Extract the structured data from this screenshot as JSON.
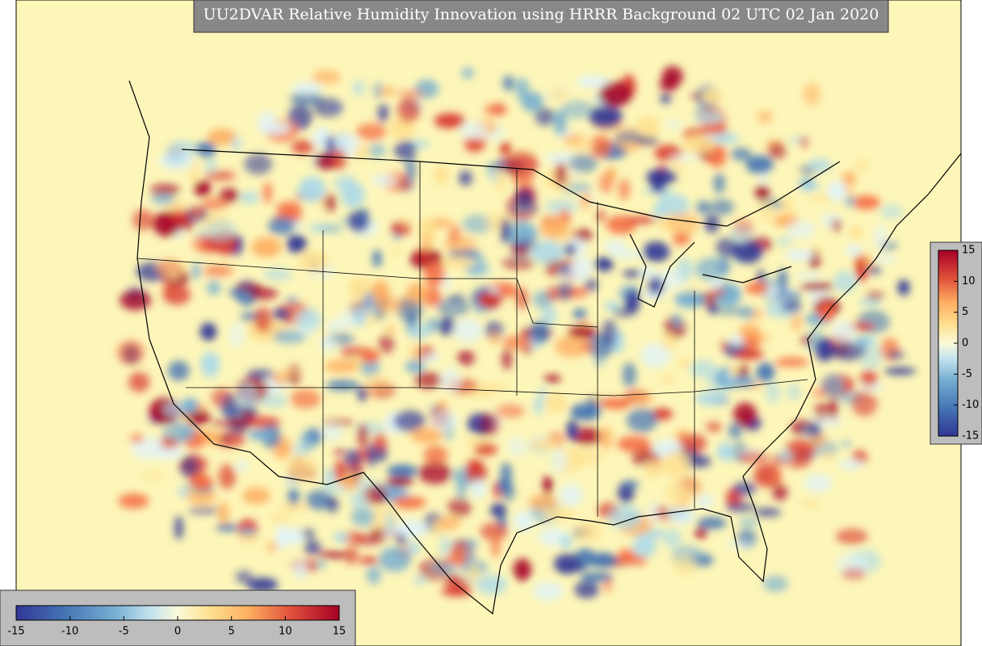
{
  "title": "UU2DVAR Relative Humidity Innovation using HRRR Background 02 UTC 02 Jan 2020",
  "colorbars": [
    {
      "orientation": "vertical",
      "range": [
        -15,
        15
      ],
      "ticks": [
        -15,
        -10,
        -5,
        0,
        5,
        10,
        15
      ]
    },
    {
      "orientation": "horizontal",
      "range": [
        -15,
        15
      ],
      "ticks": [
        -15,
        -10,
        -5,
        0,
        5,
        10,
        15
      ]
    }
  ]
}
